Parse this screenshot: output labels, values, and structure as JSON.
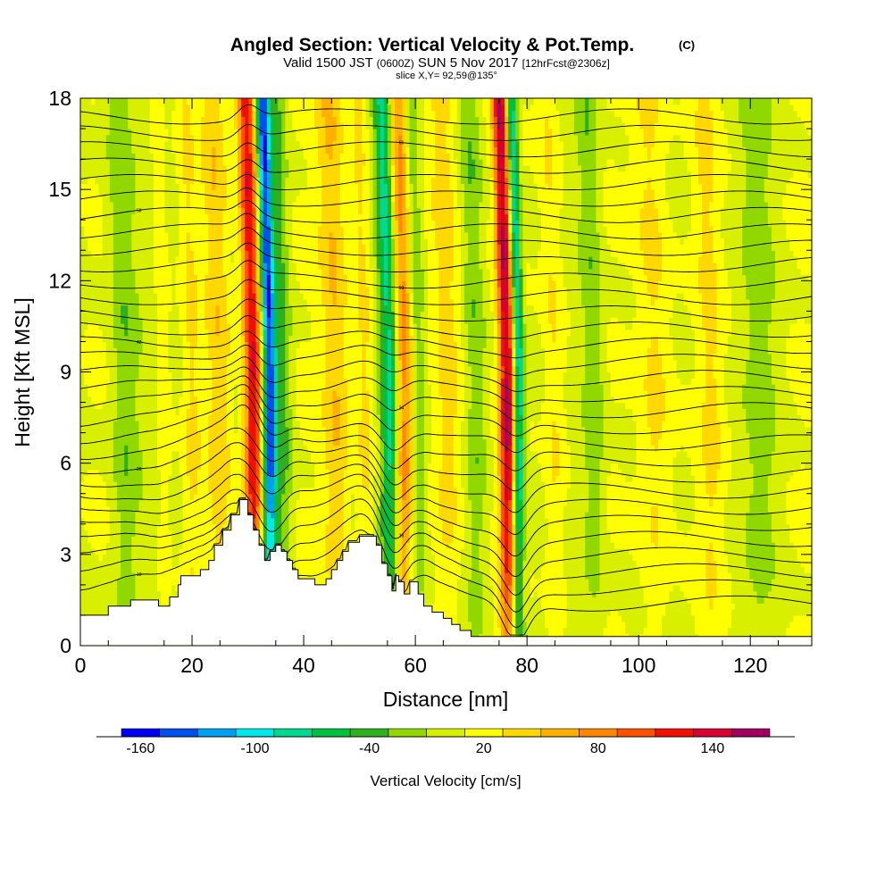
{
  "chart_data": {
    "type": "heatmap",
    "title": "Angled Section: Vertical Velocity & Pot.Temp.",
    "title_mark": "(C)",
    "subtitle": {
      "part1": "Valid 1500 JST",
      "part2": "(0600Z)",
      "part3": "SUN 5 Nov 2017",
      "part4": "[12hrFcst@2306z]"
    },
    "slice_label": "slice X,Y= 92,59@135°",
    "xlabel": "Distance [nm]",
    "ylabel": "Height [Kft MSL]",
    "xlim": [
      0,
      131
    ],
    "ylim": [
      0,
      18
    ],
    "x_ticks": [
      "0",
      "20",
      "40",
      "60",
      "80",
      "100",
      "120"
    ],
    "y_ticks": [
      "0",
      "3",
      "6",
      "9",
      "12",
      "15",
      "18"
    ],
    "colorbar": {
      "label": "Vertical Velocity [cm/s]",
      "tick_labels": [
        "-160",
        "-100",
        "-40",
        "20",
        "80",
        "140"
      ],
      "bounds": [
        -170,
        -150,
        -130,
        -110,
        -90,
        -70,
        -50,
        -30,
        -10,
        10,
        30,
        50,
        70,
        90,
        110,
        130,
        150,
        170
      ],
      "colors": [
        "#0000f0",
        "#0050f0",
        "#00a0f0",
        "#00e8e8",
        "#00d890",
        "#00c040",
        "#30b020",
        "#90d800",
        "#d8f000",
        "#ffff00",
        "#ffd800",
        "#ffb000",
        "#ff8800",
        "#ff5000",
        "#f01000",
        "#d80030",
        "#a00060",
        "#6000a0"
      ]
    },
    "velocity_features": [
      {
        "x": 31,
        "amp": 130,
        "width": 1.6
      },
      {
        "x": 34,
        "amp": -150,
        "width": 1.2
      },
      {
        "x": 36.5,
        "amp": -40,
        "width": 1.5
      },
      {
        "x": 25,
        "amp": 35,
        "width": 2.2
      },
      {
        "x": 20,
        "amp": 25,
        "width": 1.5
      },
      {
        "x": 15,
        "amp": 25,
        "width": 1.2
      },
      {
        "x": 8,
        "amp": -35,
        "width": 2.5
      },
      {
        "x": 46,
        "amp": 45,
        "width": 2.5
      },
      {
        "x": 51,
        "amp": 35,
        "width": 1.5
      },
      {
        "x": 55.5,
        "amp": -95,
        "width": 1.6
      },
      {
        "x": 58,
        "amp": 70,
        "width": 1.8
      },
      {
        "x": 60.5,
        "amp": -45,
        "width": 1.3
      },
      {
        "x": 66,
        "amp": 40,
        "width": 2.5
      },
      {
        "x": 71,
        "amp": -30,
        "width": 1.8
      },
      {
        "x": 76.5,
        "amp": 140,
        "width": 1.4
      },
      {
        "x": 78.5,
        "amp": -110,
        "width": 1.0
      },
      {
        "x": 85,
        "amp": 30,
        "width": 2.0
      },
      {
        "x": 92,
        "amp": -35,
        "width": 2.0
      },
      {
        "x": 103,
        "amp": 35,
        "width": 3.0
      },
      {
        "x": 113,
        "amp": 25,
        "width": 2.0
      },
      {
        "x": 122,
        "amp": -20,
        "width": 3.0
      }
    ],
    "terrain": [
      [
        0,
        1.0
      ],
      [
        5,
        1.0
      ],
      [
        5,
        1.3
      ],
      [
        9,
        1.3
      ],
      [
        9,
        1.5
      ],
      [
        14,
        1.5
      ],
      [
        14,
        1.3
      ],
      [
        16,
        1.3
      ],
      [
        16,
        1.6
      ],
      [
        17.5,
        1.6
      ],
      [
        17.5,
        2.0
      ],
      [
        18,
        2.0
      ],
      [
        18,
        2.3
      ],
      [
        21.5,
        2.3
      ],
      [
        21.5,
        2.5
      ],
      [
        23,
        2.5
      ],
      [
        23,
        2.8
      ],
      [
        24,
        2.8
      ],
      [
        24,
        3.3
      ],
      [
        25.5,
        3.3
      ],
      [
        25.5,
        3.8
      ],
      [
        27,
        3.8
      ],
      [
        27,
        4.3
      ],
      [
        28.5,
        4.3
      ],
      [
        28.5,
        4.8
      ],
      [
        30,
        4.8
      ],
      [
        30,
        4.3
      ],
      [
        31,
        4.3
      ],
      [
        31,
        3.8
      ],
      [
        32,
        3.8
      ],
      [
        32,
        3.3
      ],
      [
        33,
        3.3
      ],
      [
        33,
        2.8
      ],
      [
        34,
        2.8
      ],
      [
        34,
        3.1
      ],
      [
        35,
        3.1
      ],
      [
        35,
        3.3
      ],
      [
        36,
        3.3
      ],
      [
        36,
        3.1
      ],
      [
        37,
        3.1
      ],
      [
        37,
        2.8
      ],
      [
        38,
        2.8
      ],
      [
        38,
        2.5
      ],
      [
        39,
        2.5
      ],
      [
        39,
        2.2
      ],
      [
        42,
        2.2
      ],
      [
        42,
        2.0
      ],
      [
        44,
        2.0
      ],
      [
        44,
        2.2
      ],
      [
        45,
        2.2
      ],
      [
        45,
        2.5
      ],
      [
        46,
        2.5
      ],
      [
        46,
        2.8
      ],
      [
        47,
        2.8
      ],
      [
        47,
        3.1
      ],
      [
        48,
        3.1
      ],
      [
        48,
        3.4
      ],
      [
        50,
        3.4
      ],
      [
        50,
        3.6
      ],
      [
        53,
        3.6
      ],
      [
        53,
        3.3
      ],
      [
        54,
        3.3
      ],
      [
        54,
        2.7
      ],
      [
        55,
        2.7
      ],
      [
        55,
        2.3
      ],
      [
        55.8,
        2.3
      ],
      [
        55.8,
        1.8
      ],
      [
        56.5,
        1.8
      ],
      [
        56.5,
        2.3
      ],
      [
        57,
        2.3
      ],
      [
        57,
        2.1
      ],
      [
        58,
        2.1
      ],
      [
        58,
        1.7
      ],
      [
        59,
        1.7
      ],
      [
        59,
        2.1
      ],
      [
        60.5,
        2.1
      ],
      [
        60.5,
        1.7
      ],
      [
        61.5,
        1.7
      ],
      [
        61.5,
        1.3
      ],
      [
        63,
        1.3
      ],
      [
        63,
        1.1
      ],
      [
        65,
        1.1
      ],
      [
        65,
        0.9
      ],
      [
        66.5,
        0.9
      ],
      [
        66.5,
        0.7
      ],
      [
        68,
        0.7
      ],
      [
        68,
        0.5
      ],
      [
        70,
        0.5
      ],
      [
        70,
        0.3
      ],
      [
        131,
        0.3
      ]
    ],
    "contour_levels": [
      "10",
      "12",
      "14",
      "16",
      "18",
      "20",
      "22",
      "24",
      "26",
      "28",
      "30",
      "32",
      "34",
      "36",
      "38",
      "40",
      "42",
      "44",
      "46",
      "48",
      "50",
      "52",
      "54",
      "56",
      "58",
      "60",
      "62",
      "64",
      "66",
      "68",
      "70"
    ]
  }
}
